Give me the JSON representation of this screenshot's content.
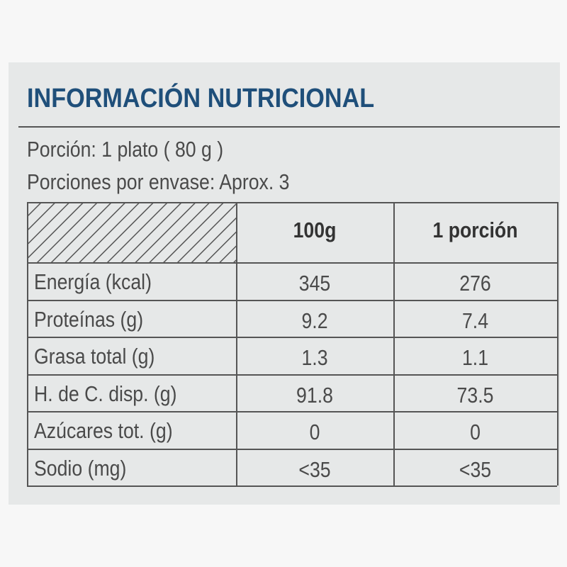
{
  "header": {
    "title": "INFORMACIÓN NUTRICIONAL"
  },
  "serving": {
    "portion": "Porción: 1 plato  ( 80 g )",
    "per_package": "Porciones por envase: Aprox. 3"
  },
  "table": {
    "header": [
      "100g",
      "1 porción"
    ],
    "rows": [
      [
        "Energía (kcal)",
        "345",
        "276"
      ],
      [
        "Proteínas (g)",
        "9.2",
        "7.4"
      ],
      [
        "Grasa total (g)",
        "1.3",
        "1.1"
      ],
      [
        "H. de  C. disp. (g)",
        "91.8",
        "73.5"
      ],
      [
        "Azúcares tot. (g)",
        "0",
        "0"
      ],
      [
        "Sodio (mg)",
        "<35",
        "<35"
      ]
    ]
  }
}
